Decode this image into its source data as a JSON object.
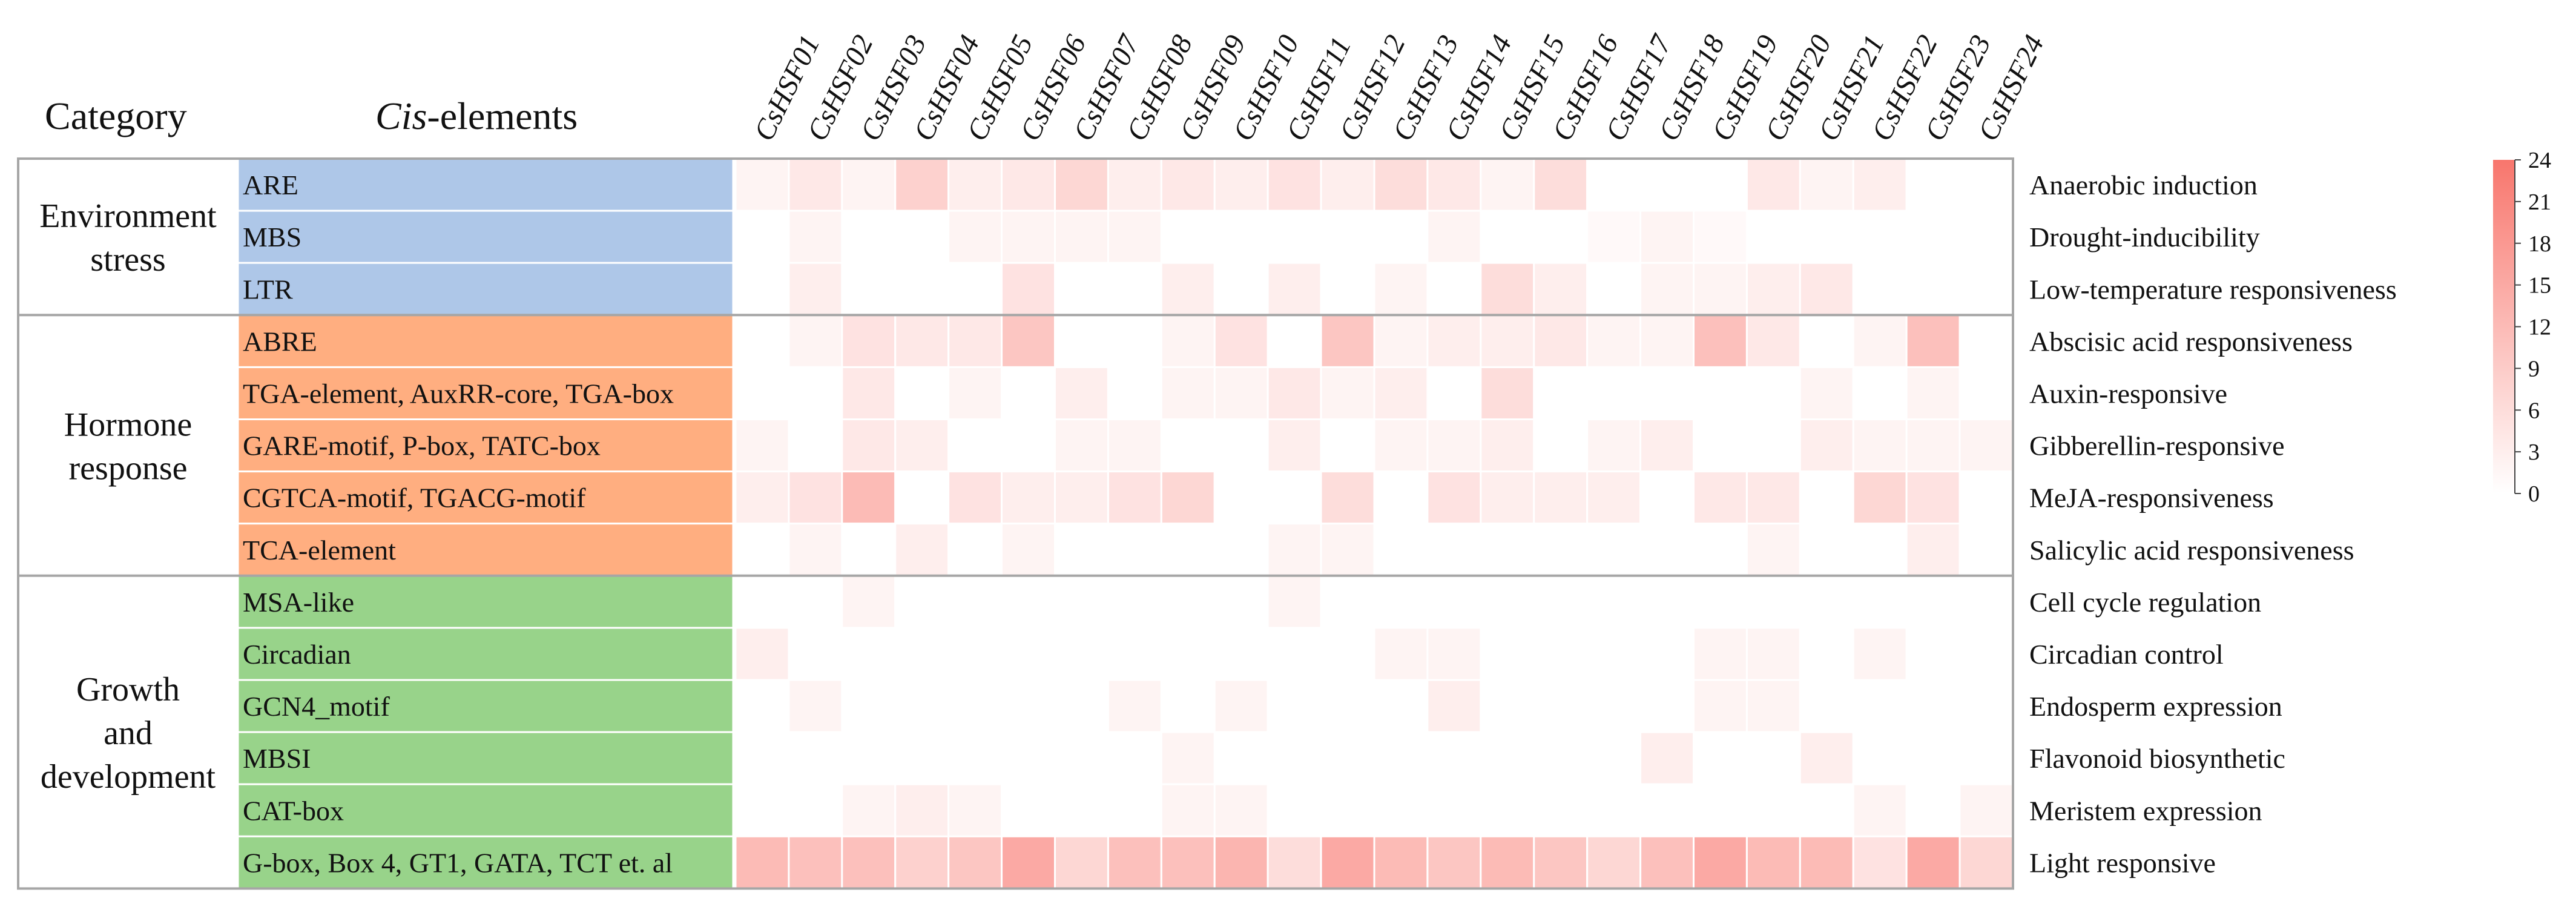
{
  "headers": {
    "category": "Category",
    "cis_italic": "Cis",
    "cis_rest": "-elements"
  },
  "colors": {
    "environment": "#aec7e8",
    "hormone": "#ffae80",
    "growth": "#98d38a",
    "heat_max": "#f8766d",
    "heat_min": "#ffffff",
    "frame": "#a6a6a6"
  },
  "chart_data": {
    "type": "heatmap",
    "title": "",
    "columns": [
      "CsHSF01",
      "CsHSF02",
      "CsHSF03",
      "CsHSF04",
      "CsHSF05",
      "CsHSF06",
      "CsHSF07",
      "CsHSF08",
      "CsHSF09",
      "CsHSF10",
      "CsHSF11",
      "CsHSF12",
      "CsHSF13",
      "CsHSF14",
      "CsHSF15",
      "CsHSF16",
      "CsHSF17",
      "CsHSF18",
      "CsHSF19",
      "CsHSF20",
      "CsHSF21",
      "CsHSF22",
      "CsHSF23",
      "CsHSF24"
    ],
    "categories": [
      {
        "label": [
          "Environment",
          "stress"
        ],
        "key": "environment",
        "rows": 3
      },
      {
        "label": [
          "Hormone",
          "response"
        ],
        "key": "hormone",
        "rows": 5
      },
      {
        "label": [
          "Growth",
          "and",
          "development"
        ],
        "key": "growth",
        "rows": 6
      }
    ],
    "rows": [
      {
        "element": "ARE",
        "function": "Anaerobic induction",
        "values": [
          2,
          4,
          2,
          8,
          3,
          4,
          7,
          3,
          4,
          3,
          5,
          3,
          6,
          4,
          2,
          6,
          0,
          0,
          0,
          4,
          2,
          3,
          0,
          0
        ]
      },
      {
        "element": "MBS",
        "function": "Drought-inducibility",
        "values": [
          0,
          2,
          0,
          0,
          2,
          2,
          2,
          2,
          0,
          0,
          0,
          0,
          0,
          2,
          0,
          0,
          1,
          2,
          1,
          0,
          0,
          0,
          0,
          0
        ]
      },
      {
        "element": "LTR",
        "function": "Low-temperature responsiveness",
        "values": [
          0,
          3,
          0,
          0,
          0,
          5,
          0,
          0,
          3,
          0,
          3,
          0,
          2,
          0,
          6,
          3,
          0,
          2,
          2,
          3,
          4,
          0,
          0,
          0
        ]
      },
      {
        "element": "ABRE",
        "function": "Abscisic acid responsiveness",
        "values": [
          0,
          2,
          5,
          4,
          4,
          10,
          0,
          0,
          2,
          5,
          0,
          10,
          2,
          3,
          3,
          4,
          2,
          2,
          11,
          4,
          0,
          2,
          11,
          0
        ]
      },
      {
        "element": "TGA-element, AuxRR-core, TGA-box",
        "function": "Auxin-responsive",
        "values": [
          0,
          0,
          4,
          0,
          2,
          0,
          3,
          0,
          2,
          2,
          4,
          2,
          3,
          0,
          6,
          0,
          0,
          0,
          0,
          0,
          2,
          0,
          2,
          0
        ]
      },
      {
        "element": "GARE-motif, P-box, TATC-box",
        "function": "Gibberellin-responsive",
        "values": [
          2,
          0,
          4,
          3,
          0,
          0,
          2,
          2,
          0,
          0,
          3,
          0,
          2,
          2,
          3,
          0,
          2,
          3,
          0,
          0,
          3,
          2,
          2,
          2
        ]
      },
      {
        "element": "CGTCA-motif, TGACG-motif",
        "function": "MeJA-responsiveness",
        "values": [
          3,
          5,
          12,
          0,
          5,
          3,
          3,
          5,
          7,
          0,
          0,
          6,
          0,
          5,
          3,
          3,
          3,
          0,
          4,
          4,
          0,
          7,
          5,
          0
        ]
      },
      {
        "element": "TCA-element",
        "function": "Salicylic acid responsiveness",
        "values": [
          0,
          2,
          0,
          3,
          0,
          2,
          0,
          0,
          0,
          0,
          2,
          2,
          0,
          0,
          0,
          0,
          0,
          0,
          0,
          2,
          0,
          0,
          3,
          0
        ]
      },
      {
        "element": "MSA-like",
        "function": "Cell cycle regulation",
        "values": [
          0,
          0,
          2,
          0,
          0,
          0,
          0,
          0,
          0,
          0,
          2,
          0,
          0,
          0,
          0,
          0,
          0,
          0,
          0,
          0,
          0,
          0,
          0,
          0
        ]
      },
      {
        "element": "Circadian",
        "function": "Circadian control",
        "values": [
          3,
          0,
          0,
          0,
          0,
          0,
          0,
          0,
          0,
          0,
          0,
          0,
          2,
          2,
          0,
          0,
          0,
          0,
          2,
          2,
          0,
          2,
          0,
          0
        ]
      },
      {
        "element": "GCN4_motif",
        "function": "Endosperm expression",
        "values": [
          0,
          2,
          0,
          0,
          0,
          0,
          0,
          2,
          0,
          2,
          0,
          0,
          0,
          3,
          0,
          0,
          0,
          0,
          2,
          2,
          0,
          0,
          0,
          0
        ]
      },
      {
        "element": "MBSI",
        "function": "Flavonoid biosynthetic",
        "values": [
          0,
          0,
          0,
          0,
          0,
          0,
          0,
          0,
          2,
          0,
          0,
          0,
          0,
          0,
          0,
          0,
          0,
          3,
          0,
          0,
          3,
          0,
          0,
          0
        ]
      },
      {
        "element": "CAT-box",
        "function": "Meristem expression",
        "values": [
          0,
          0,
          2,
          3,
          2,
          0,
          0,
          0,
          2,
          2,
          0,
          0,
          0,
          0,
          0,
          0,
          0,
          0,
          0,
          0,
          0,
          2,
          0,
          2
        ]
      },
      {
        "element": "G-box, Box 4, GT1, GATA, TCT et. al",
        "function": "Light responsive",
        "values": [
          12,
          11,
          11,
          8,
          10,
          15,
          7,
          11,
          11,
          13,
          6,
          15,
          12,
          10,
          12,
          10,
          7,
          11,
          15,
          12,
          12,
          5,
          15,
          7
        ]
      }
    ],
    "colorbar": {
      "min": 0,
      "max": 24,
      "ticks": [
        "24",
        "21",
        "18",
        "15",
        "12",
        "9",
        "6",
        "3",
        "0"
      ]
    },
    "legend_position": "right"
  }
}
